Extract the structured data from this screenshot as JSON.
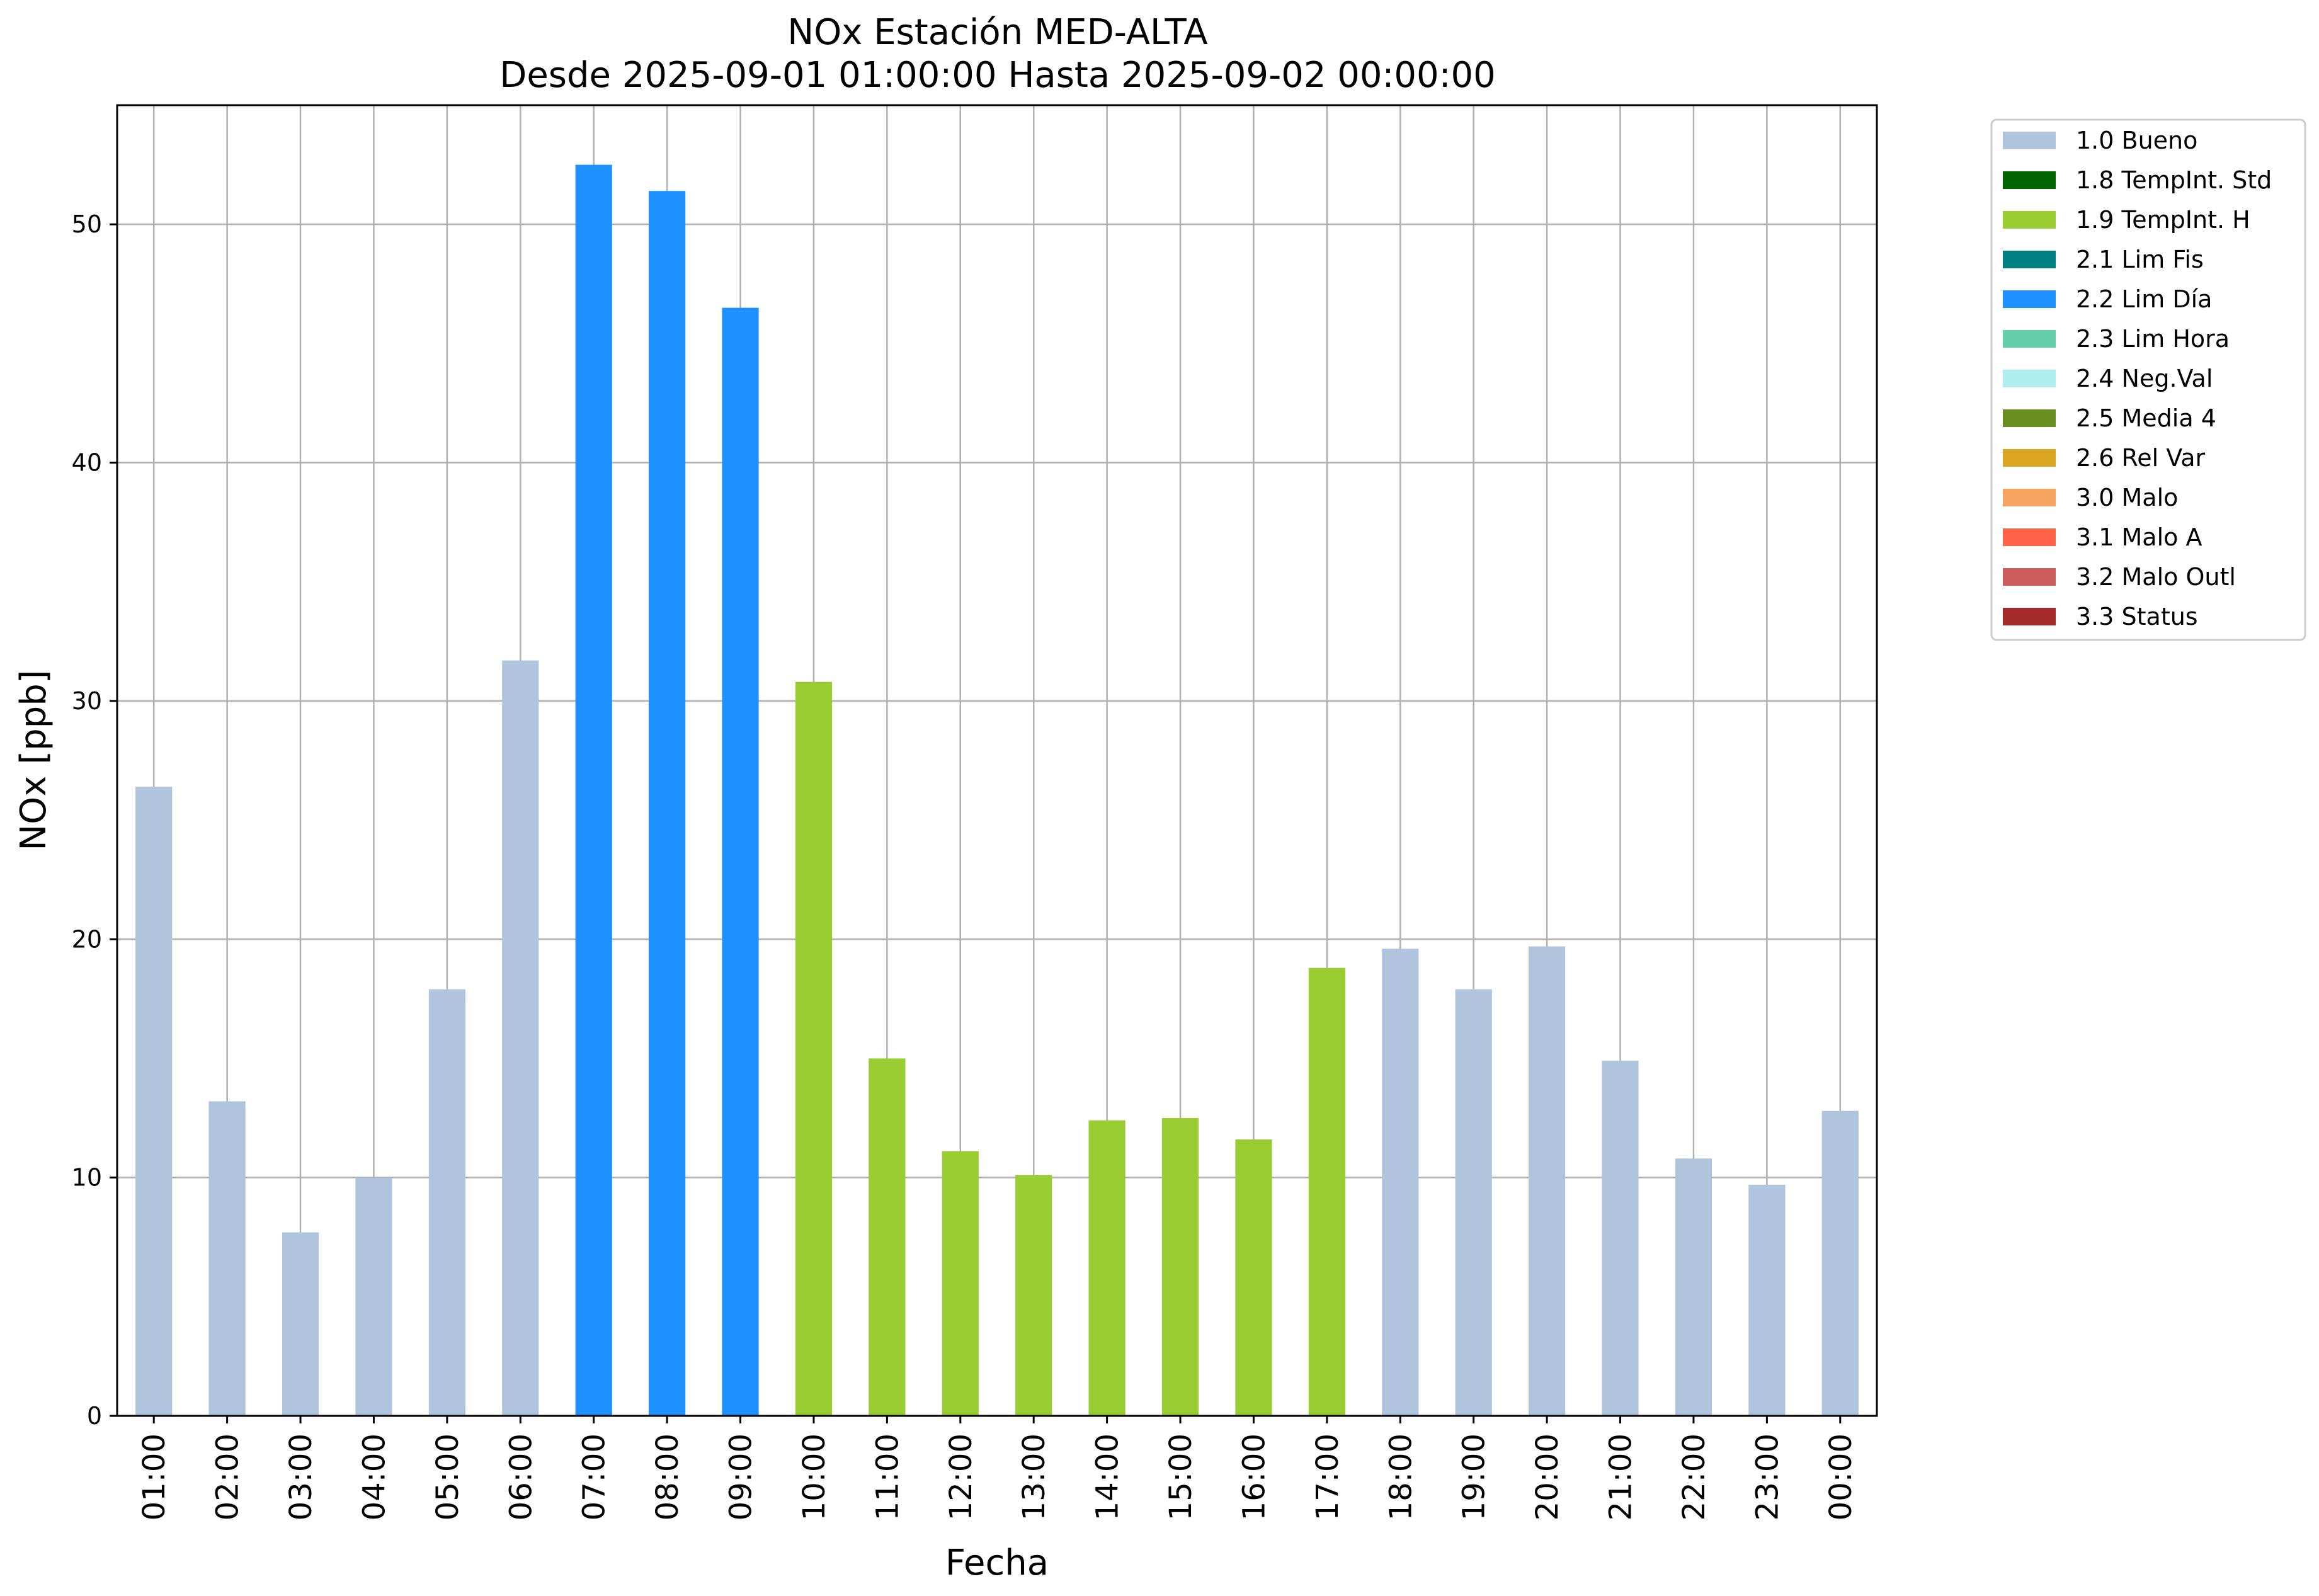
{
  "chart_data": {
    "type": "bar",
    "title": "NOx Estación MED-ALTA",
    "subtitle": "Desde 2025-09-01 01:00:00 Hasta 2025-09-02 00:00:00",
    "xlabel": "Fecha",
    "ylabel": "NOx [ppb]",
    "ylim": [
      0,
      55
    ],
    "yticks": [
      "0",
      "10",
      "20",
      "30",
      "40",
      "50"
    ],
    "grid": true,
    "legend_position": "outside-top-right",
    "categories": [
      "01:00",
      "02:00",
      "03:00",
      "04:00",
      "05:00",
      "06:00",
      "07:00",
      "08:00",
      "09:00",
      "10:00",
      "11:00",
      "12:00",
      "13:00",
      "14:00",
      "15:00",
      "16:00",
      "17:00",
      "18:00",
      "19:00",
      "20:00",
      "21:00",
      "22:00",
      "23:00",
      "00:00"
    ],
    "values": [
      26.4,
      13.2,
      7.7,
      10.0,
      17.9,
      31.7,
      52.5,
      51.4,
      46.5,
      30.8,
      15.0,
      11.1,
      10.1,
      12.4,
      12.5,
      11.6,
      18.8,
      19.6,
      17.9,
      19.7,
      14.9,
      10.8,
      9.7,
      12.8
    ],
    "flags": [
      "1.0 Bueno",
      "1.0 Bueno",
      "1.0 Bueno",
      "1.0 Bueno",
      "1.0 Bueno",
      "1.0 Bueno",
      "2.2 Lim Día",
      "2.2 Lim Día",
      "2.2 Lim Día",
      "1.9 TempInt. H",
      "1.9 TempInt. H",
      "1.9 TempInt. H",
      "1.9 TempInt. H",
      "1.9 TempInt. H",
      "1.9 TempInt. H",
      "1.9 TempInt. H",
      "1.9 TempInt. H",
      "1.0 Bueno",
      "1.0 Bueno",
      "1.0 Bueno",
      "1.0 Bueno",
      "1.0 Bueno",
      "1.0 Bueno",
      "1.0 Bueno"
    ],
    "legend": [
      {
        "label": "1.0 Bueno",
        "color": "#b0c4de"
      },
      {
        "label": "1.8 TempInt. Std",
        "color": "#006400"
      },
      {
        "label": "1.9 TempInt. H",
        "color": "#9acd32"
      },
      {
        "label": "2.1 Lim Fis",
        "color": "#008080"
      },
      {
        "label": "2.2 Lim Día",
        "color": "#1e90ff"
      },
      {
        "label": "2.3 Lim Hora",
        "color": "#66cdaa"
      },
      {
        "label": "2.4 Neg.Val",
        "color": "#afeeee"
      },
      {
        "label": "2.5 Media 4",
        "color": "#6b8e23"
      },
      {
        "label": "2.6 Rel Var",
        "color": "#daa520"
      },
      {
        "label": "3.0 Malo",
        "color": "#f4a460"
      },
      {
        "label": "3.1 Malo A",
        "color": "#ff6347"
      },
      {
        "label": "3.2 Malo Outl",
        "color": "#cd5c5c"
      },
      {
        "label": "3.3 Status",
        "color": "#a52a2a"
      }
    ]
  }
}
